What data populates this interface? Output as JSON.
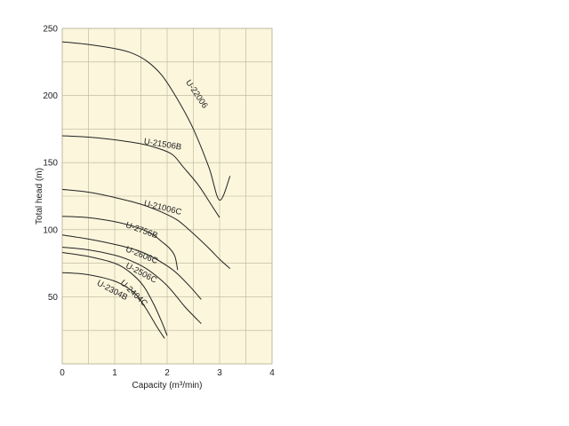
{
  "chart_data": {
    "type": "line",
    "xlabel": "Capacity (m³/min)",
    "ylabel": "Total head (m)",
    "xlim": [
      0,
      4
    ],
    "ylim": [
      0,
      250
    ],
    "x_ticks": [
      0,
      1,
      2,
      3,
      4
    ],
    "y_ticks": [
      50,
      100,
      150,
      200,
      250
    ],
    "x_grid_step": 0.5,
    "y_grid_step": 25,
    "grid": true,
    "background_color": "#fbf6dc",
    "grid_color": "#b9b39a",
    "series": [
      {
        "name": "U-22006",
        "x": [
          0,
          0.5,
          1.0,
          1.3,
          1.6,
          1.9,
          2.2,
          2.5,
          2.8,
          3.0,
          3.2
        ],
        "y": [
          240,
          238,
          235,
          232,
          226,
          215,
          197,
          175,
          146,
          122,
          140
        ],
        "label_at": [
          2.35,
          210
        ],
        "label_angle": 56
      },
      {
        "name": "U-21506B",
        "x": [
          0,
          0.5,
          1.0,
          1.5,
          1.8,
          2.1,
          2.3,
          2.6,
          2.85,
          3.0
        ],
        "y": [
          170,
          169,
          167,
          164,
          161,
          156,
          147,
          133,
          118,
          109
        ],
        "label_at": [
          1.55,
          164
        ],
        "label_angle": 9
      },
      {
        "name": "U-21006C",
        "x": [
          0,
          0.5,
          1.0,
          1.5,
          1.9,
          2.2,
          2.5,
          2.8,
          3.0,
          3.2
        ],
        "y": [
          130,
          128,
          124,
          119,
          113,
          107,
          97,
          86,
          78,
          71
        ],
        "label_at": [
          1.55,
          118
        ],
        "label_angle": 14
      },
      {
        "name": "U-2756B",
        "x": [
          0,
          0.5,
          1.0,
          1.4,
          1.7,
          1.9,
          2.05,
          2.15,
          2.2
        ],
        "y": [
          110,
          109,
          106,
          102,
          97,
          91,
          86,
          80,
          70
        ],
        "label_at": [
          1.2,
          102
        ],
        "label_angle": 20
      },
      {
        "name": "U-2606C",
        "x": [
          0,
          0.5,
          1.0,
          1.4,
          1.7,
          2.0,
          2.2,
          2.45,
          2.65
        ],
        "y": [
          96,
          93,
          89,
          85,
          80,
          73,
          67,
          57,
          48
        ],
        "label_at": [
          1.2,
          84
        ],
        "label_angle": 22
      },
      {
        "name": "U-2506C",
        "x": [
          0,
          0.5,
          1.0,
          1.3,
          1.6,
          1.9,
          2.1,
          2.35,
          2.65
        ],
        "y": [
          87,
          85,
          81,
          77,
          71,
          62,
          54,
          42,
          30
        ],
        "label_at": [
          1.2,
          72
        ],
        "label_angle": 28
      },
      {
        "name": "U-2404C",
        "x": [
          0,
          0.5,
          1.0,
          1.3,
          1.55,
          1.75,
          1.9,
          2.0
        ],
        "y": [
          83,
          80,
          75,
          68,
          58,
          44,
          31,
          21
        ],
        "label_at": [
          1.1,
          60
        ],
        "label_angle": 44
      },
      {
        "name": "U-2304B",
        "x": [
          0,
          0.4,
          0.8,
          1.1,
          1.4,
          1.6,
          1.8,
          1.95
        ],
        "y": [
          68,
          67,
          64,
          60,
          52,
          41,
          28,
          19
        ],
        "label_at": [
          0.65,
          59
        ],
        "label_angle": 28
      }
    ]
  }
}
